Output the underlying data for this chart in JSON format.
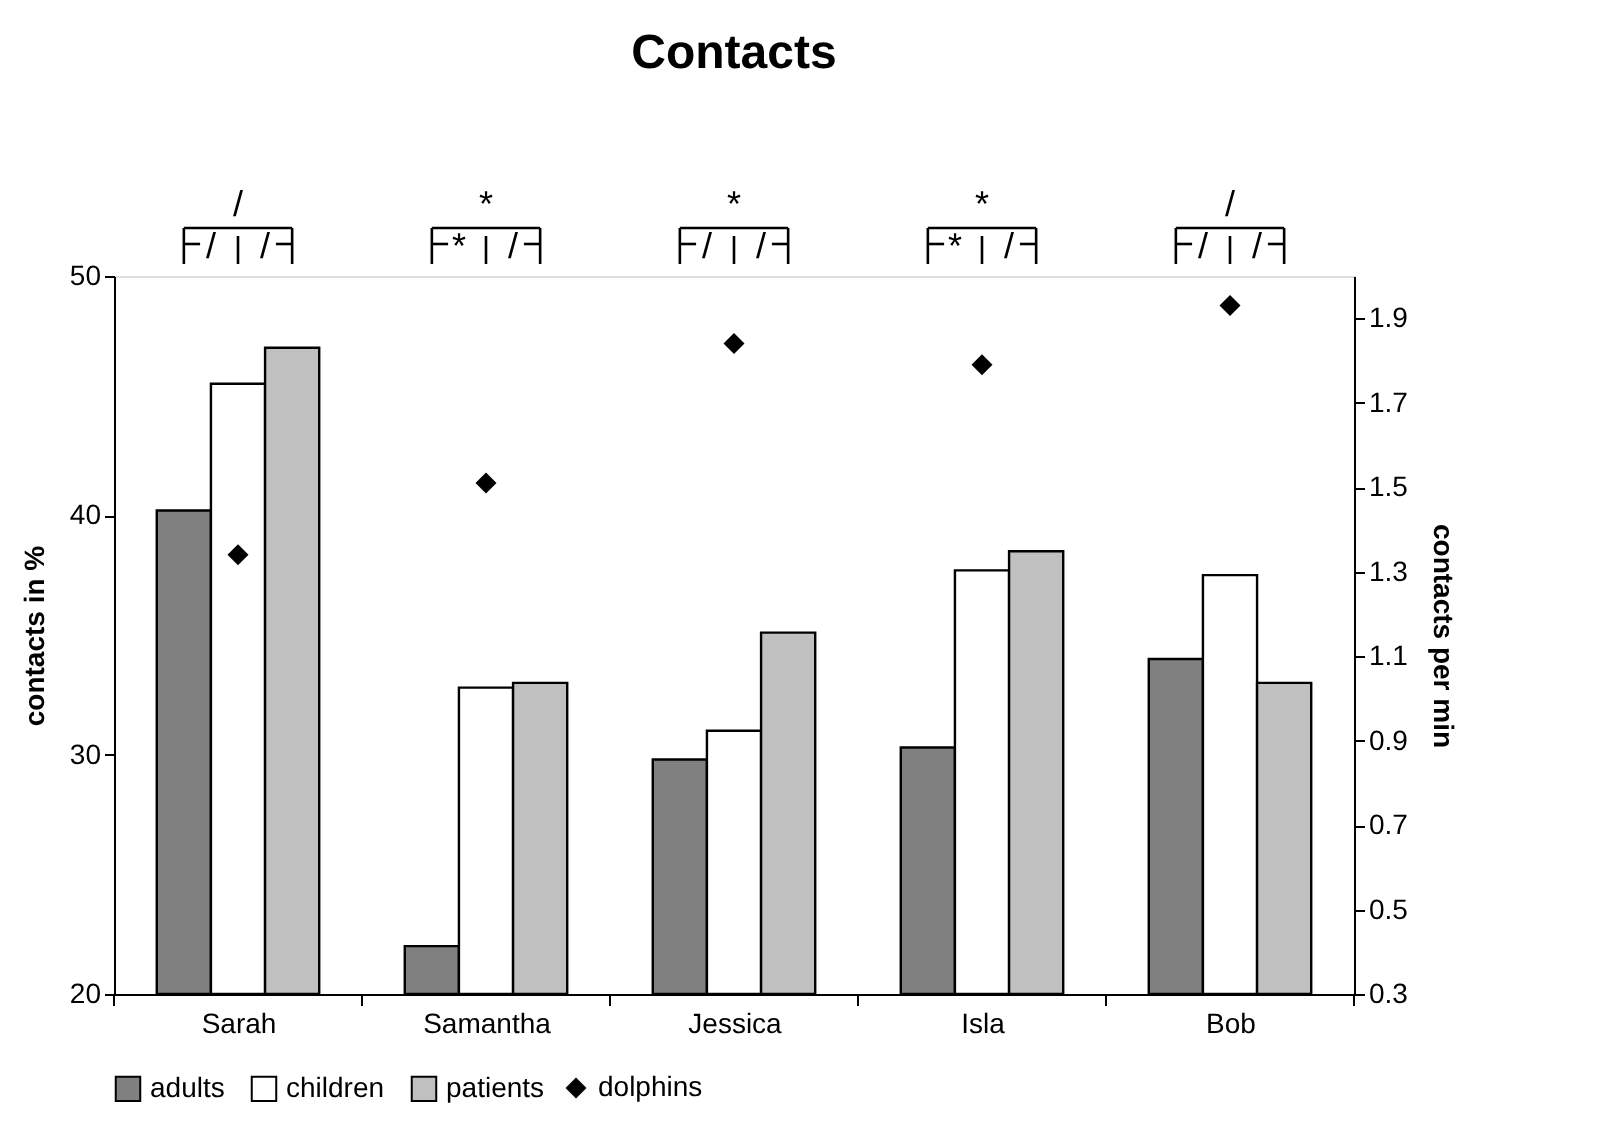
{
  "chart_data": {
    "type": "bar",
    "title": "Contacts",
    "ylabel": "contacts in %",
    "y2label": "contacts per min",
    "categories": [
      "Sarah",
      "Samantha",
      "Jessica",
      "Isla",
      "Bob"
    ],
    "series": [
      {
        "name": "adults",
        "color": "#808080",
        "values": [
          40.2,
          22.0,
          29.8,
          30.3,
          34.0
        ]
      },
      {
        "name": "children",
        "color": "#ffffff",
        "values": [
          45.5,
          32.8,
          31.0,
          37.7,
          37.5
        ]
      },
      {
        "name": "patients",
        "color": "#c0c0c0",
        "values": [
          47.0,
          33.0,
          35.1,
          38.5,
          33.0
        ]
      },
      {
        "name": "dolphins",
        "color": "#000000",
        "type": "scatter",
        "axis": "y2",
        "marker": "diamond",
        "values": [
          1.34,
          1.51,
          1.84,
          1.79,
          1.93
        ]
      }
    ],
    "ylim": [
      20,
      50
    ],
    "yticks": [
      20,
      30,
      40,
      50
    ],
    "y2lim": [
      0.3,
      2.0
    ],
    "y2ticks": [
      0.3,
      0.5,
      0.7,
      0.9,
      1.1,
      1.3,
      1.5,
      1.7,
      1.9
    ],
    "grid": false,
    "legend": "bottom",
    "annotations": [
      "/",
      "/",
      "/",
      "*",
      "/",
      "*",
      "/",
      "/",
      "*",
      "*",
      "/",
      "*",
      "/",
      "/",
      "/"
    ]
  }
}
